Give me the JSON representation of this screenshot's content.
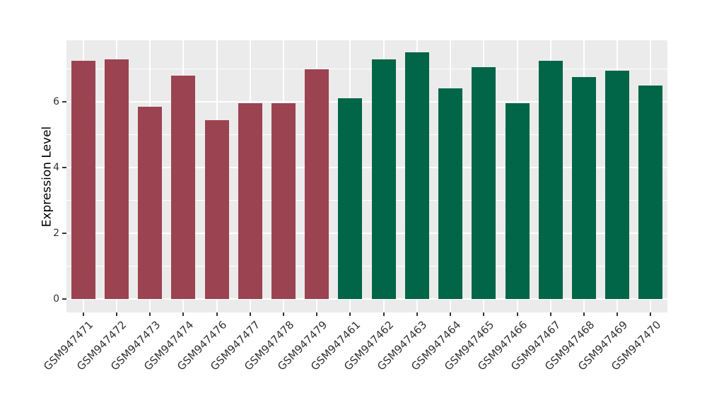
{
  "figure": {
    "background": "#FFFFFF"
  },
  "chart_data": {
    "type": "bar",
    "title": "",
    "xlabel": "",
    "ylabel": "Expression Level",
    "ylim": [
      0,
      7.9
    ],
    "yticks": [
      0,
      2,
      4,
      6
    ],
    "yticks_minor": [
      1,
      3,
      5,
      7
    ],
    "grid": "on",
    "legend": "none",
    "panel_background": "#EBEBEB",
    "gridline_color": "#FFFFFF",
    "axis_text_color": "#333333",
    "series": [
      {
        "name": "left-group",
        "color": "#9B4351",
        "categories": [
          "GSM947471",
          "GSM947472",
          "GSM947473",
          "GSM947474",
          "GSM947476",
          "GSM947477",
          "GSM947478",
          "GSM947479"
        ],
        "values": [
          7.25,
          7.3,
          5.85,
          6.8,
          5.45,
          5.95,
          5.95,
          7.0
        ]
      },
      {
        "name": "right-group",
        "color": "#006647",
        "categories": [
          "GSM947461",
          "GSM947462",
          "GSM947463",
          "GSM947464",
          "GSM947465",
          "GSM947466",
          "GSM947467",
          "GSM947468",
          "GSM947469",
          "GSM947470"
        ],
        "values": [
          6.1,
          7.3,
          7.5,
          6.4,
          7.05,
          5.95,
          7.25,
          6.75,
          6.95,
          6.5
        ]
      }
    ]
  }
}
